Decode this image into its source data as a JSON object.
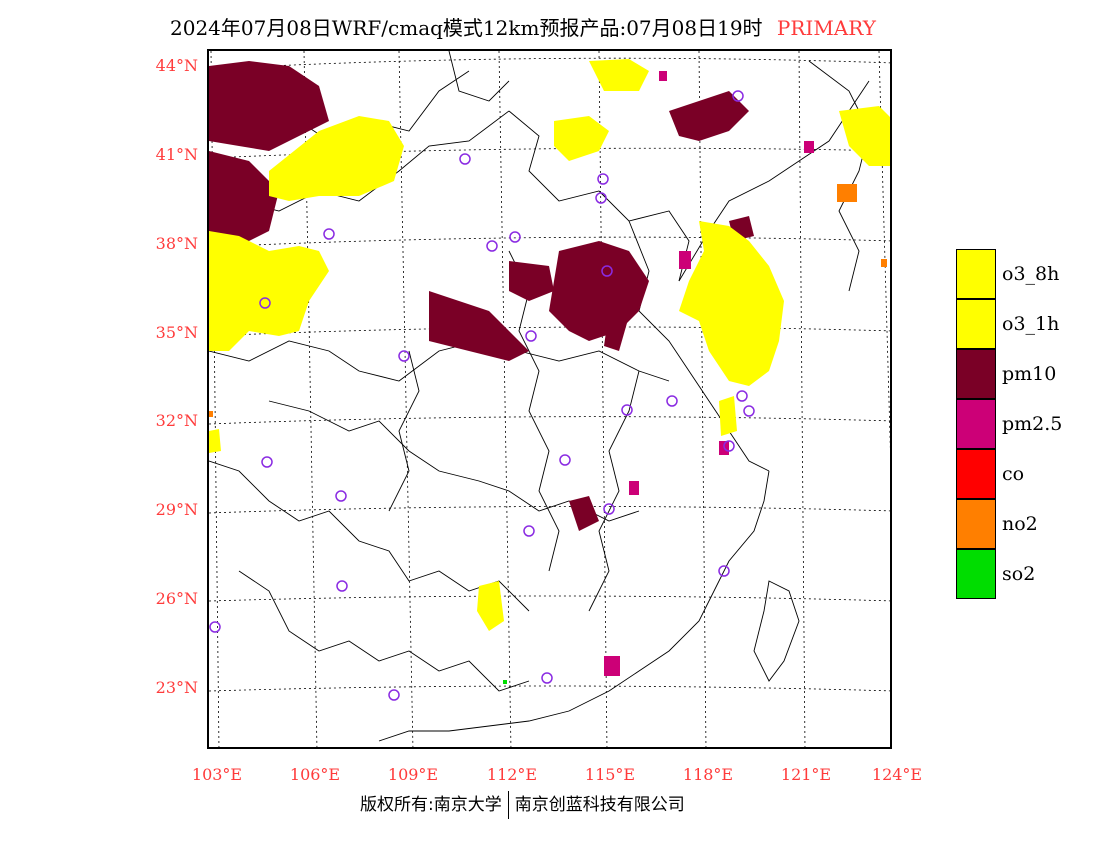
{
  "title": {
    "main": "2024年07月08日WRF/cmaq模式12km预报产品:07月08日19时",
    "tag": "PRIMARY"
  },
  "latitude_labels": [
    "44°N",
    "41°N",
    "38°N",
    "35°N",
    "32°N",
    "29°N",
    "26°N",
    "23°N"
  ],
  "longitude_labels": [
    "103°E",
    "106°E",
    "109°E",
    "112°E",
    "115°E",
    "118°E",
    "121°E",
    "124°E"
  ],
  "legend": [
    {
      "label": "o3_8h",
      "color": "#ffff00"
    },
    {
      "label": "o3_1h",
      "color": "#ffff00"
    },
    {
      "label": "pm10",
      "color": "#7a0026"
    },
    {
      "label": "pm2.5",
      "color": "#cc0077"
    },
    {
      "label": "co",
      "color": "#ff0000"
    },
    {
      "label": "no2",
      "color": "#ff7f00"
    },
    {
      "label": "so2",
      "color": "#00dd00"
    }
  ],
  "copyright": {
    "left": "版权所有:南京大学",
    "right": "南京创蓝科技有限公司"
  },
  "colors": {
    "title_tag": "#ff3b3b",
    "axis_labels": "#ff3b3b",
    "station_marker": "#8a2be2"
  }
}
